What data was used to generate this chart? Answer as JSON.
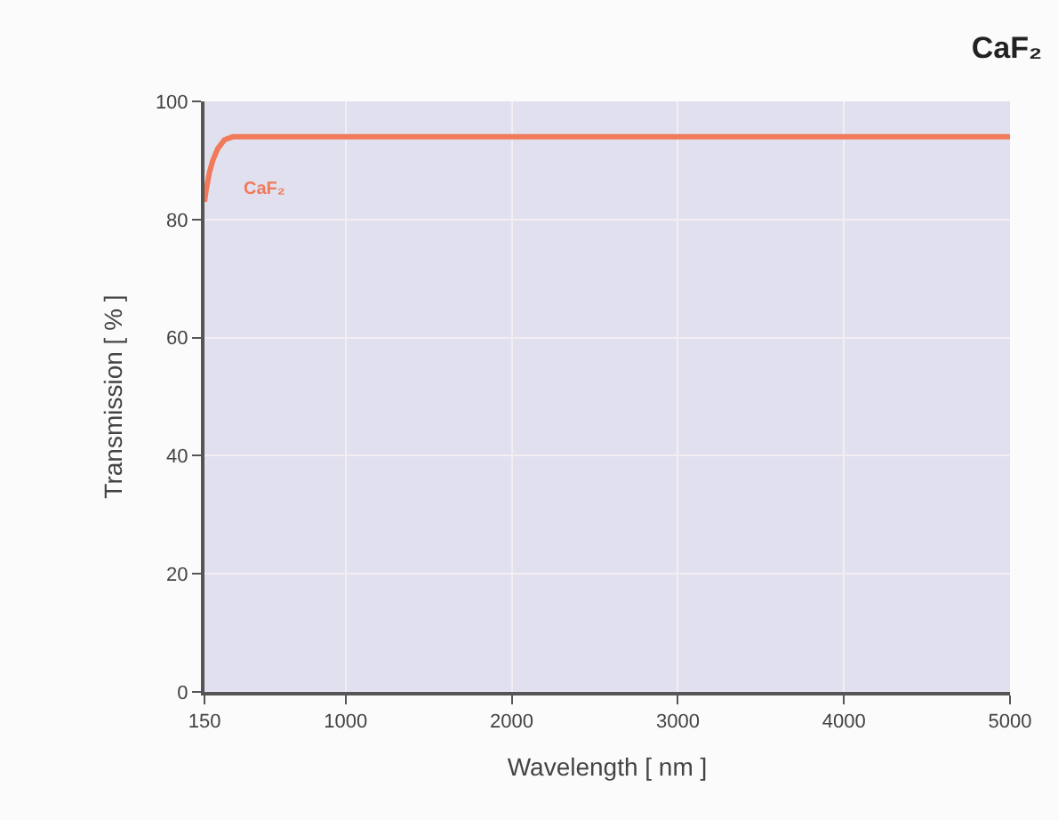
{
  "chart_data": {
    "type": "line",
    "title": "CaF₂",
    "xlabel": "Wavelength [ nm ]",
    "ylabel": "Transmission [ % ]",
    "series": [
      {
        "name": "CaF₂",
        "color": "#f07a5a",
        "x": [
          150,
          160,
          180,
          200,
          230,
          270,
          320,
          5000
        ],
        "values": [
          83,
          85,
          88,
          90,
          92,
          93.5,
          94,
          94
        ]
      }
    ],
    "xlim": [
      150,
      5000
    ],
    "xticks": [
      150,
      1000,
      2000,
      3000,
      4000,
      5000
    ],
    "ylim": [
      0,
      100
    ],
    "yticks": [
      0,
      20,
      40,
      60,
      80,
      100
    ],
    "grid": true,
    "legend": false,
    "marker": "none",
    "line_style": "solid"
  }
}
